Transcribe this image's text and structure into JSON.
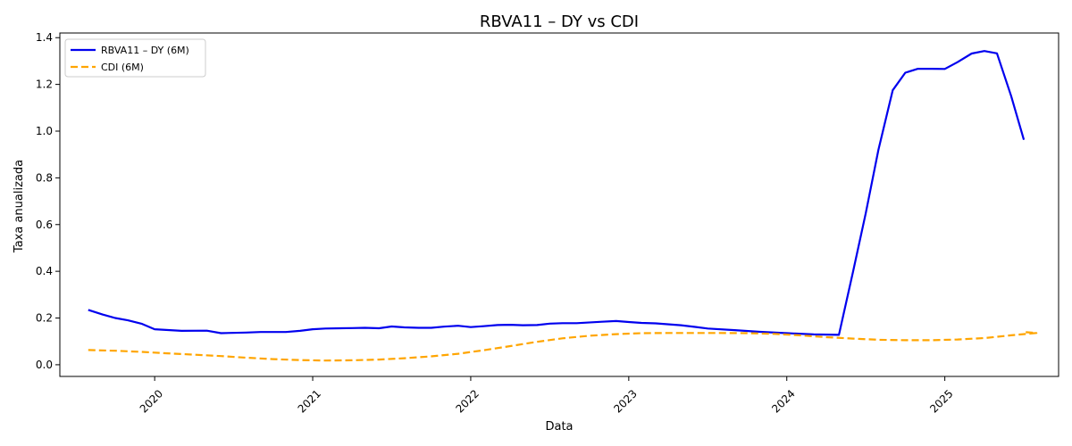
{
  "chart_data": {
    "type": "line",
    "title": "RBVA11 – DY vs CDI",
    "xlabel": "Data",
    "ylabel": "Taxa anualizada",
    "xlim": [
      2019.4,
      2025.72
    ],
    "ylim": [
      -0.05,
      1.42
    ],
    "x_ticks": [
      {
        "value": 2020,
        "label": "2020"
      },
      {
        "value": 2021,
        "label": "2021"
      },
      {
        "value": 2022,
        "label": "2022"
      },
      {
        "value": 2023,
        "label": "2023"
      },
      {
        "value": 2024,
        "label": "2024"
      },
      {
        "value": 2025,
        "label": "2025"
      }
    ],
    "y_ticks": [
      {
        "value": 0.0,
        "label": "0.0"
      },
      {
        "value": 0.2,
        "label": "0.2"
      },
      {
        "value": 0.4,
        "label": "0.4"
      },
      {
        "value": 0.6,
        "label": "0.6"
      },
      {
        "value": 0.8,
        "label": "0.8"
      },
      {
        "value": 1.0,
        "label": "1.0"
      },
      {
        "value": 1.2,
        "label": "1.2"
      },
      {
        "value": 1.4,
        "label": "1.4"
      }
    ],
    "grid": false,
    "legend_position": "top-left",
    "series": [
      {
        "name": "RBVA11 – DY (6M)",
        "color": "#0000ee",
        "style": "solid",
        "points": [
          [
            2019.58,
            0.235
          ],
          [
            2019.67,
            0.215
          ],
          [
            2019.75,
            0.2
          ],
          [
            2019.83,
            0.19
          ],
          [
            2019.92,
            0.175
          ],
          [
            2020.0,
            0.152
          ],
          [
            2020.17,
            0.145
          ],
          [
            2020.33,
            0.146
          ],
          [
            2020.42,
            0.135
          ],
          [
            2020.58,
            0.138
          ],
          [
            2020.67,
            0.14
          ],
          [
            2020.83,
            0.14
          ],
          [
            2020.92,
            0.145
          ],
          [
            2021.0,
            0.152
          ],
          [
            2021.08,
            0.155
          ],
          [
            2021.25,
            0.157
          ],
          [
            2021.33,
            0.158
          ],
          [
            2021.42,
            0.156
          ],
          [
            2021.5,
            0.164
          ],
          [
            2021.58,
            0.16
          ],
          [
            2021.67,
            0.158
          ],
          [
            2021.75,
            0.158
          ],
          [
            2021.83,
            0.163
          ],
          [
            2021.92,
            0.167
          ],
          [
            2022.0,
            0.161
          ],
          [
            2022.08,
            0.165
          ],
          [
            2022.17,
            0.17
          ],
          [
            2022.25,
            0.171
          ],
          [
            2022.33,
            0.169
          ],
          [
            2022.42,
            0.17
          ],
          [
            2022.5,
            0.176
          ],
          [
            2022.58,
            0.178
          ],
          [
            2022.67,
            0.178
          ],
          [
            2022.83,
            0.184
          ],
          [
            2022.92,
            0.187
          ],
          [
            2023.0,
            0.183
          ],
          [
            2023.08,
            0.179
          ],
          [
            2023.17,
            0.177
          ],
          [
            2023.33,
            0.169
          ],
          [
            2023.42,
            0.162
          ],
          [
            2023.5,
            0.155
          ],
          [
            2023.67,
            0.148
          ],
          [
            2023.83,
            0.141
          ],
          [
            2024.0,
            0.135
          ],
          [
            2024.17,
            0.13
          ],
          [
            2024.33,
            0.128
          ],
          [
            2024.42,
            0.4
          ],
          [
            2024.5,
            0.65
          ],
          [
            2024.58,
            0.92
          ],
          [
            2024.67,
            1.175
          ],
          [
            2024.75,
            1.25
          ],
          [
            2024.83,
            1.267
          ],
          [
            2024.92,
            1.267
          ],
          [
            2025.0,
            1.266
          ],
          [
            2025.08,
            1.295
          ],
          [
            2025.17,
            1.332
          ],
          [
            2025.25,
            1.343
          ],
          [
            2025.33,
            1.333
          ],
          [
            2025.42,
            1.15
          ],
          [
            2025.5,
            0.963
          ]
        ]
      },
      {
        "name": "CDI (6M)",
        "color": "#ffa500",
        "style": "dashed",
        "points": [
          [
            2019.58,
            0.063
          ],
          [
            2019.75,
            0.06
          ],
          [
            2019.92,
            0.055
          ],
          [
            2020.08,
            0.049
          ],
          [
            2020.25,
            0.043
          ],
          [
            2020.42,
            0.037
          ],
          [
            2020.58,
            0.03
          ],
          [
            2020.75,
            0.024
          ],
          [
            2020.92,
            0.02
          ],
          [
            2021.08,
            0.018
          ],
          [
            2021.25,
            0.019
          ],
          [
            2021.42,
            0.022
          ],
          [
            2021.58,
            0.028
          ],
          [
            2021.75,
            0.036
          ],
          [
            2021.92,
            0.047
          ],
          [
            2022.08,
            0.062
          ],
          [
            2022.25,
            0.08
          ],
          [
            2022.42,
            0.098
          ],
          [
            2022.58,
            0.113
          ],
          [
            2022.75,
            0.124
          ],
          [
            2022.92,
            0.131
          ],
          [
            2023.08,
            0.135
          ],
          [
            2023.25,
            0.136
          ],
          [
            2023.42,
            0.136
          ],
          [
            2023.58,
            0.136
          ],
          [
            2023.75,
            0.135
          ],
          [
            2023.92,
            0.132
          ],
          [
            2024.08,
            0.126
          ],
          [
            2024.25,
            0.118
          ],
          [
            2024.42,
            0.112
          ],
          [
            2024.58,
            0.107
          ],
          [
            2024.75,
            0.105
          ],
          [
            2024.92,
            0.105
          ],
          [
            2025.08,
            0.108
          ],
          [
            2025.25,
            0.114
          ],
          [
            2025.42,
            0.126
          ],
          [
            2025.58,
            0.136
          ],
          [
            2025.5,
            0.14
          ]
        ]
      }
    ]
  }
}
